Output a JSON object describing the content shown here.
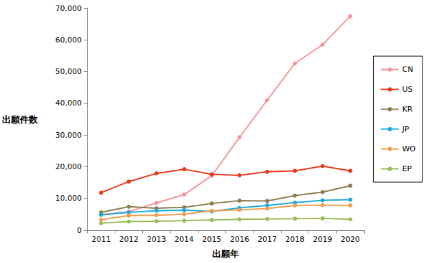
{
  "chart_data": {
    "type": "line",
    "x_label": "出願年",
    "y_label": "出願件数",
    "categories": [
      "2011",
      "2012",
      "2013",
      "2014",
      "2015",
      "2016",
      "2017",
      "2018",
      "2019",
      "2020"
    ],
    "series": [
      {
        "name": "CN",
        "color": "#f4959b",
        "values": [
          4900,
          5800,
          8600,
          11200,
          17200,
          29300,
          41000,
          52600,
          58500,
          67500
        ]
      },
      {
        "name": "US",
        "color": "#e8381b",
        "values": [
          11800,
          15300,
          17900,
          19200,
          17600,
          17300,
          18400,
          18700,
          20200,
          18700
        ]
      },
      {
        "name": "KR",
        "color": "#8b7d4f",
        "values": [
          5600,
          7400,
          6900,
          7200,
          8400,
          9300,
          9200,
          10900,
          12000,
          14000
        ]
      },
      {
        "name": "JP",
        "color": "#1ea9dc",
        "values": [
          4800,
          5600,
          6100,
          6300,
          5900,
          7000,
          7800,
          8700,
          9400,
          9600
        ]
      },
      {
        "name": "WO",
        "color": "#f39c4f",
        "values": [
          3300,
          4600,
          4700,
          5000,
          6100,
          6400,
          6800,
          7800,
          7900,
          7800
        ]
      },
      {
        "name": "EP",
        "color": "#9bbb59",
        "values": [
          2200,
          2700,
          2800,
          3000,
          3200,
          3400,
          3500,
          3600,
          3700,
          3400
        ]
      }
    ],
    "ylim": [
      0,
      70000
    ],
    "yticks": [
      0,
      {
        "value": 10000,
        "label": "10,000"
      },
      {
        "value": 20000,
        "label": "20,000"
      },
      {
        "value": 30000,
        "label": "30,000"
      },
      {
        "value": 40000,
        "label": "40,000"
      },
      {
        "value": 50000,
        "label": "50,000"
      },
      {
        "value": 60000,
        "label": "60,000"
      },
      {
        "value": 70000,
        "label": "70,000"
      }
    ],
    "grid": false,
    "legend": "right",
    "marker": "circle"
  }
}
